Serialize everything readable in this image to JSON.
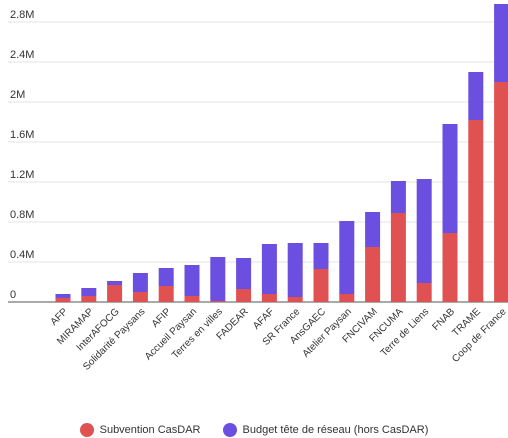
{
  "chart_data": {
    "type": "bar",
    "stacked": true,
    "title": "",
    "xlabel": "",
    "ylabel": "",
    "ylim": [
      0,
      3.0
    ],
    "yticks": [
      0,
      0.4,
      0.8,
      1.2,
      1.6,
      2.0,
      2.4,
      2.8
    ],
    "ytick_labels": [
      "0",
      "0.4M",
      "0.8M",
      "1.2M",
      "1.6M",
      "2M",
      "2.4M",
      "2.8M"
    ],
    "grid": true,
    "legend_position": "bottom",
    "categories": [
      "AFP",
      "MIRAMAP",
      "InterAFOCG",
      "Solidarité Paysans",
      "AFIP",
      "Accueil Paysan",
      "Terres en villes",
      "FADEAR",
      "AFAF",
      "SR France",
      "AnsGAEC",
      "Atelier Paysan",
      "FNCIVAM",
      "FNCUMA",
      "Terre de Liens",
      "FNAB",
      "TRAME",
      "Coop de France"
    ],
    "series": [
      {
        "name": "Subvention CasDAR",
        "color": "#e05252",
        "values": [
          0.04,
          0.06,
          0.17,
          0.1,
          0.16,
          0.06,
          0.01,
          0.13,
          0.08,
          0.05,
          0.33,
          0.08,
          0.55,
          0.89,
          0.19,
          0.69,
          1.82,
          2.2
        ]
      },
      {
        "name": "Budget tête de réseau (hors CasDAR)",
        "color": "#6a4fe0",
        "values": [
          0.04,
          0.08,
          0.04,
          0.19,
          0.18,
          0.31,
          0.44,
          0.31,
          0.5,
          0.54,
          0.26,
          0.73,
          0.35,
          0.32,
          1.04,
          1.09,
          0.48,
          0.78
        ]
      }
    ]
  }
}
